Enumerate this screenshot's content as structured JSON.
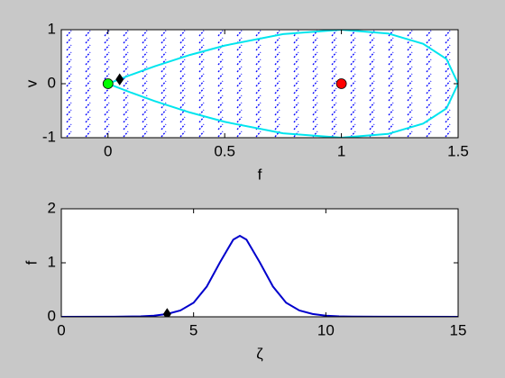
{
  "chart_data": [
    {
      "type": "line",
      "xlabel": "f",
      "ylabel": "v",
      "xlim": [
        -0.2,
        1.5
      ],
      "ylim": [
        -1,
        1
      ],
      "xticks": [
        0,
        0.5,
        1,
        1.5
      ],
      "yticks": [
        -1,
        0,
        1
      ],
      "series": [
        {
          "color": "#00e5ee",
          "x": [
            0,
            0.1,
            0.2,
            0.35,
            0.5,
            0.75,
            1,
            1.2,
            1.35,
            1.45,
            1.5,
            1.45,
            1.35,
            1.2,
            1,
            0.75,
            0.5,
            0.35,
            0.2,
            0.1,
            0
          ],
          "values": [
            0,
            0.167,
            0.322,
            0.531,
            0.707,
            0.919,
            1,
            0.93,
            0.739,
            0.459,
            0,
            -0.459,
            -0.739,
            -0.93,
            -1,
            -0.919,
            -0.707,
            -0.531,
            -0.322,
            -0.167,
            0
          ]
        },
        {
          "color": "#00ff00",
          "marker": "circle",
          "x": [
            0
          ],
          "values": [
            0
          ]
        },
        {
          "color": "#ff0000",
          "marker": "circle",
          "x": [
            1
          ],
          "values": [
            0
          ]
        },
        {
          "color": "#000000",
          "marker": "diamond",
          "x": [
            0.05
          ],
          "values": [
            0.08
          ]
        }
      ]
    },
    {
      "type": "line",
      "xlabel": "ζ",
      "ylabel": "f",
      "xlim": [
        0,
        15
      ],
      "ylim": [
        0,
        2
      ],
      "xticks": [
        0,
        5,
        10,
        15
      ],
      "yticks": [
        0,
        1,
        2
      ],
      "series": [
        {
          "color": "#0000cc",
          "x": [
            0,
            2,
            3,
            3.5,
            4,
            4.5,
            5,
            5.5,
            6,
            6.5,
            6.75,
            7,
            7.5,
            8,
            8.5,
            9,
            9.5,
            10,
            10.5,
            11,
            12,
            15
          ],
          "values": [
            0,
            0.002,
            0.009,
            0.022,
            0.051,
            0.116,
            0.26,
            0.56,
            1.01,
            1.43,
            1.5,
            1.43,
            1.01,
            0.56,
            0.26,
            0.116,
            0.051,
            0.022,
            0.009,
            0.004,
            0.001,
            0
          ]
        },
        {
          "color": "#000000",
          "marker": "diamond",
          "x": [
            4
          ],
          "values": [
            0.05
          ]
        }
      ]
    }
  ]
}
